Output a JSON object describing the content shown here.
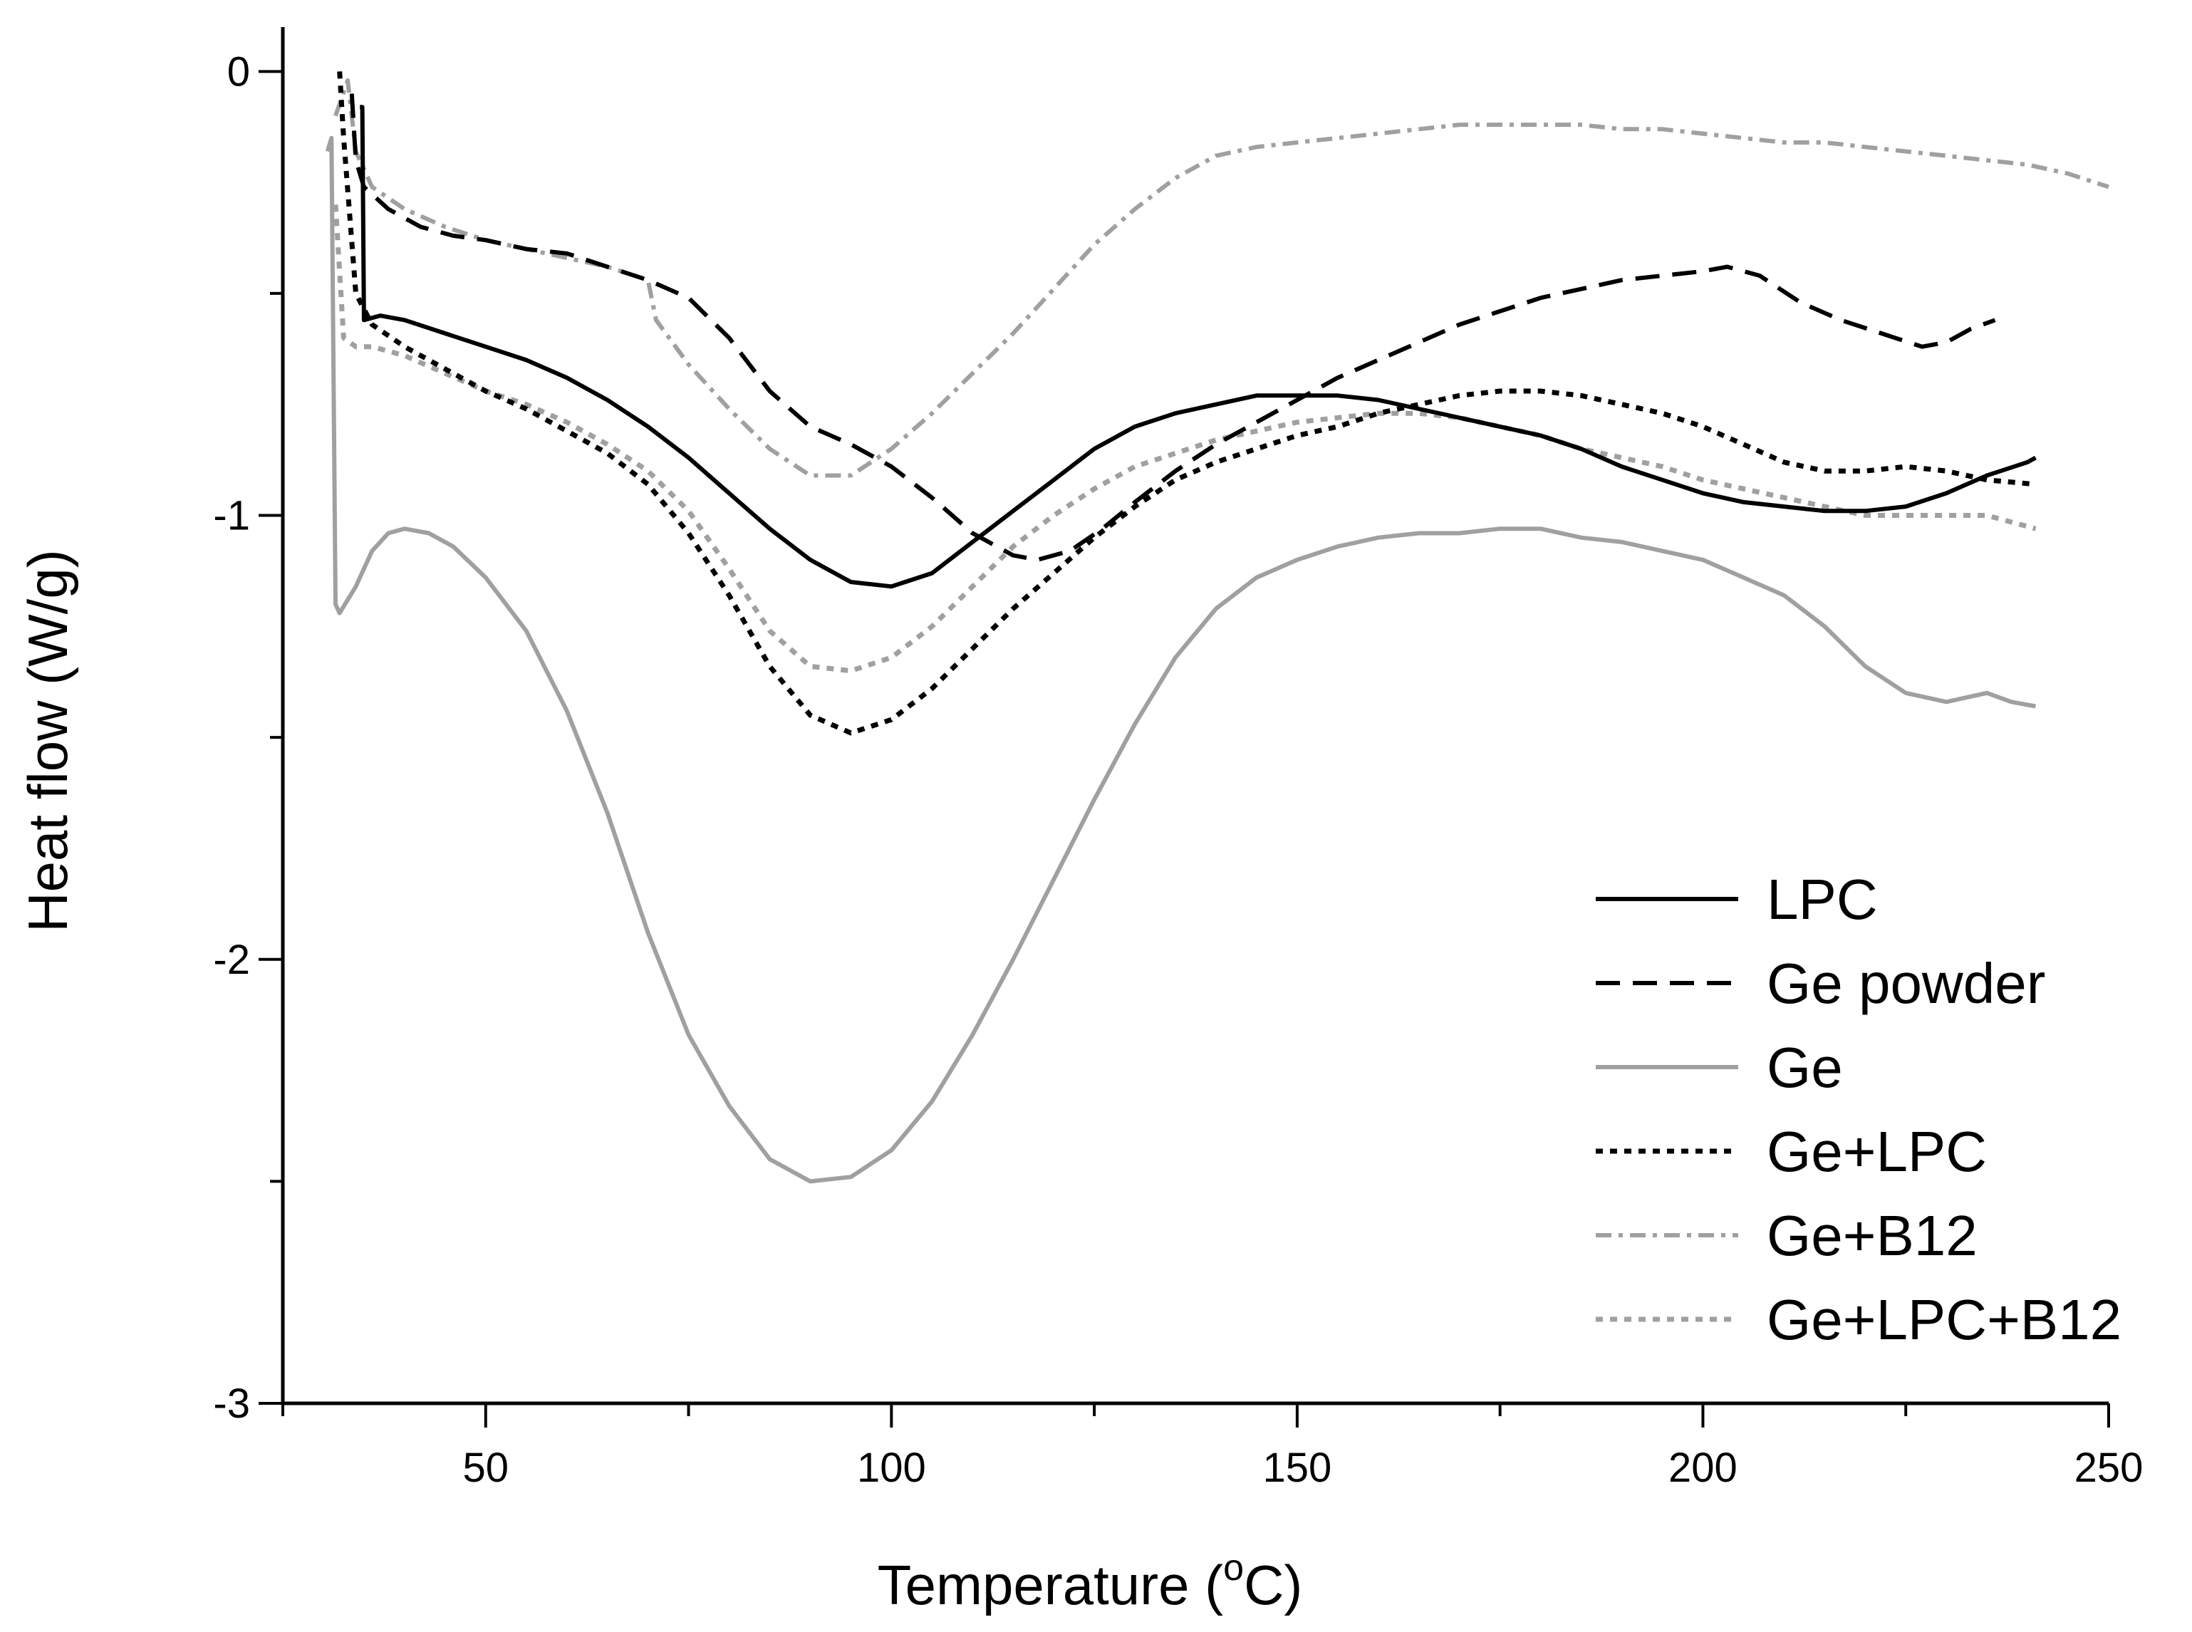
{
  "chart_data": {
    "type": "line",
    "title": "",
    "xlabel": "Temperature (",
    "xlabel_superscript": "o",
    "xlabel_unit": "C)",
    "ylabel": "Heat flow (W/g)",
    "xlim": [
      25,
      250
    ],
    "ylim": [
      -3,
      0.1
    ],
    "x_ticks": [
      50,
      100,
      150,
      200,
      250
    ],
    "x_tick_labels": [
      "50",
      "100",
      "150",
      "200",
      "250"
    ],
    "y_ticks": [
      0,
      -1,
      -2,
      -3
    ],
    "y_tick_labels": [
      "0",
      "-1",
      "-2",
      "-3"
    ],
    "legend_position": "bottom-right",
    "series": [
      {
        "name": "LPC",
        "style": "solid",
        "color": "#000000",
        "points": [
          [
            34.5,
            -0.08
          ],
          [
            34.8,
            -0.08
          ],
          [
            35.0,
            -0.56
          ],
          [
            37,
            -0.55
          ],
          [
            40,
            -0.56
          ],
          [
            45,
            -0.59
          ],
          [
            50,
            -0.62
          ],
          [
            55,
            -0.65
          ],
          [
            60,
            -0.69
          ],
          [
            65,
            -0.74
          ],
          [
            70,
            -0.8
          ],
          [
            75,
            -0.87
          ],
          [
            80,
            -0.95
          ],
          [
            85,
            -1.03
          ],
          [
            90,
            -1.1
          ],
          [
            95,
            -1.15
          ],
          [
            100,
            -1.16
          ],
          [
            105,
            -1.13
          ],
          [
            110,
            -1.06
          ],
          [
            115,
            -0.99
          ],
          [
            120,
            -0.92
          ],
          [
            125,
            -0.85
          ],
          [
            130,
            -0.8
          ],
          [
            135,
            -0.77
          ],
          [
            140,
            -0.75
          ],
          [
            145,
            -0.73
          ],
          [
            150,
            -0.73
          ],
          [
            155,
            -0.73
          ],
          [
            160,
            -0.74
          ],
          [
            165,
            -0.76
          ],
          [
            170,
            -0.78
          ],
          [
            175,
            -0.8
          ],
          [
            180,
            -0.82
          ],
          [
            185,
            -0.85
          ],
          [
            190,
            -0.89
          ],
          [
            195,
            -0.92
          ],
          [
            200,
            -0.95
          ],
          [
            205,
            -0.97
          ],
          [
            210,
            -0.98
          ],
          [
            215,
            -0.99
          ],
          [
            220,
            -0.99
          ],
          [
            225,
            -0.98
          ],
          [
            230,
            -0.95
          ],
          [
            235,
            -0.91
          ],
          [
            240,
            -0.88
          ],
          [
            241,
            -0.87
          ]
        ]
      },
      {
        "name": "Ge powder",
        "style": "dash",
        "color": "#000000",
        "points": [
          [
            33.5,
            -0.05
          ],
          [
            34,
            -0.2
          ],
          [
            35,
            -0.26
          ],
          [
            38,
            -0.31
          ],
          [
            42,
            -0.35
          ],
          [
            46,
            -0.37
          ],
          [
            50,
            -0.38
          ],
          [
            55,
            -0.4
          ],
          [
            60,
            -0.41
          ],
          [
            65,
            -0.44
          ],
          [
            70,
            -0.47
          ],
          [
            75,
            -0.51
          ],
          [
            80,
            -0.6
          ],
          [
            85,
            -0.72
          ],
          [
            90,
            -0.8
          ],
          [
            95,
            -0.84
          ],
          [
            100,
            -0.89
          ],
          [
            105,
            -0.96
          ],
          [
            110,
            -1.04
          ],
          [
            115,
            -1.09
          ],
          [
            118,
            -1.1
          ],
          [
            122,
            -1.08
          ],
          [
            126,
            -1.03
          ],
          [
            130,
            -0.97
          ],
          [
            135,
            -0.9
          ],
          [
            140,
            -0.84
          ],
          [
            145,
            -0.79
          ],
          [
            150,
            -0.74
          ],
          [
            155,
            -0.69
          ],
          [
            160,
            -0.65
          ],
          [
            165,
            -0.61
          ],
          [
            170,
            -0.57
          ],
          [
            175,
            -0.54
          ],
          [
            180,
            -0.51
          ],
          [
            185,
            -0.49
          ],
          [
            190,
            -0.47
          ],
          [
            195,
            -0.46
          ],
          [
            200,
            -0.45
          ],
          [
            203,
            -0.44
          ],
          [
            207,
            -0.46
          ],
          [
            212,
            -0.52
          ],
          [
            217,
            -0.56
          ],
          [
            222,
            -0.59
          ],
          [
            227,
            -0.62
          ],
          [
            230,
            -0.61
          ],
          [
            233,
            -0.58
          ],
          [
            236,
            -0.56
          ]
        ]
      },
      {
        "name": "Ge",
        "style": "solid",
        "color": "#a0a0a0",
        "points": [
          [
            30.5,
            -0.18
          ],
          [
            31,
            -0.15
          ],
          [
            31.5,
            -1.2
          ],
          [
            32,
            -1.22
          ],
          [
            34,
            -1.16
          ],
          [
            36,
            -1.08
          ],
          [
            38,
            -1.04
          ],
          [
            40,
            -1.03
          ],
          [
            43,
            -1.04
          ],
          [
            46,
            -1.07
          ],
          [
            50,
            -1.14
          ],
          [
            55,
            -1.26
          ],
          [
            60,
            -1.44
          ],
          [
            65,
            -1.67
          ],
          [
            70,
            -1.94
          ],
          [
            75,
            -2.17
          ],
          [
            80,
            -2.33
          ],
          [
            85,
            -2.45
          ],
          [
            90,
            -2.5
          ],
          [
            95,
            -2.49
          ],
          [
            100,
            -2.43
          ],
          [
            105,
            -2.32
          ],
          [
            110,
            -2.17
          ],
          [
            115,
            -2.0
          ],
          [
            120,
            -1.82
          ],
          [
            125,
            -1.64
          ],
          [
            130,
            -1.47
          ],
          [
            135,
            -1.32
          ],
          [
            140,
            -1.21
          ],
          [
            145,
            -1.14
          ],
          [
            150,
            -1.1
          ],
          [
            155,
            -1.07
          ],
          [
            160,
            -1.05
          ],
          [
            165,
            -1.04
          ],
          [
            170,
            -1.04
          ],
          [
            175,
            -1.03
          ],
          [
            180,
            -1.03
          ],
          [
            185,
            -1.05
          ],
          [
            190,
            -1.06
          ],
          [
            195,
            -1.08
          ],
          [
            200,
            -1.1
          ],
          [
            205,
            -1.14
          ],
          [
            210,
            -1.18
          ],
          [
            215,
            -1.25
          ],
          [
            220,
            -1.34
          ],
          [
            225,
            -1.4
          ],
          [
            230,
            -1.42
          ],
          [
            235,
            -1.4
          ],
          [
            238,
            -1.42
          ],
          [
            241,
            -1.43
          ]
        ]
      },
      {
        "name": "Ge+LPC",
        "style": "dot",
        "color": "#000000",
        "points": [
          [
            32,
            0.0
          ],
          [
            32.5,
            -0.15
          ],
          [
            34,
            -0.5
          ],
          [
            36,
            -0.57
          ],
          [
            40,
            -0.62
          ],
          [
            45,
            -0.67
          ],
          [
            50,
            -0.72
          ],
          [
            55,
            -0.76
          ],
          [
            60,
            -0.81
          ],
          [
            65,
            -0.86
          ],
          [
            70,
            -0.93
          ],
          [
            75,
            -1.04
          ],
          [
            80,
            -1.18
          ],
          [
            85,
            -1.34
          ],
          [
            90,
            -1.45
          ],
          [
            95,
            -1.49
          ],
          [
            100,
            -1.46
          ],
          [
            105,
            -1.39
          ],
          [
            110,
            -1.3
          ],
          [
            115,
            -1.21
          ],
          [
            120,
            -1.13
          ],
          [
            125,
            -1.05
          ],
          [
            130,
            -0.98
          ],
          [
            135,
            -0.92
          ],
          [
            140,
            -0.88
          ],
          [
            145,
            -0.85
          ],
          [
            150,
            -0.82
          ],
          [
            155,
            -0.8
          ],
          [
            160,
            -0.77
          ],
          [
            165,
            -0.75
          ],
          [
            170,
            -0.73
          ],
          [
            175,
            -0.72
          ],
          [
            180,
            -0.72
          ],
          [
            185,
            -0.73
          ],
          [
            190,
            -0.75
          ],
          [
            195,
            -0.77
          ],
          [
            200,
            -0.8
          ],
          [
            205,
            -0.84
          ],
          [
            210,
            -0.88
          ],
          [
            215,
            -0.9
          ],
          [
            220,
            -0.9
          ],
          [
            225,
            -0.89
          ],
          [
            230,
            -0.9
          ],
          [
            235,
            -0.92
          ],
          [
            241,
            -0.93
          ]
        ]
      },
      {
        "name": "Ge+B12",
        "style": "dashdot",
        "color": "#a0a0a0",
        "points": [
          [
            31.5,
            -0.1
          ],
          [
            33,
            -0.02
          ],
          [
            34,
            -0.18
          ],
          [
            36,
            -0.26
          ],
          [
            40,
            -0.31
          ],
          [
            45,
            -0.35
          ],
          [
            50,
            -0.38
          ],
          [
            55,
            -0.4
          ],
          [
            60,
            -0.42
          ],
          [
            65,
            -0.44
          ],
          [
            70,
            -0.47
          ],
          [
            71,
            -0.56
          ],
          [
            75,
            -0.66
          ],
          [
            80,
            -0.76
          ],
          [
            85,
            -0.85
          ],
          [
            90,
            -0.91
          ],
          [
            95,
            -0.91
          ],
          [
            100,
            -0.85
          ],
          [
            105,
            -0.77
          ],
          [
            110,
            -0.68
          ],
          [
            115,
            -0.59
          ],
          [
            120,
            -0.49
          ],
          [
            125,
            -0.39
          ],
          [
            130,
            -0.31
          ],
          [
            135,
            -0.24
          ],
          [
            140,
            -0.19
          ],
          [
            145,
            -0.17
          ],
          [
            150,
            -0.16
          ],
          [
            155,
            -0.15
          ],
          [
            160,
            -0.14
          ],
          [
            165,
            -0.13
          ],
          [
            170,
            -0.12
          ],
          [
            175,
            -0.12
          ],
          [
            180,
            -0.12
          ],
          [
            185,
            -0.12
          ],
          [
            190,
            -0.13
          ],
          [
            195,
            -0.13
          ],
          [
            200,
            -0.14
          ],
          [
            205,
            -0.15
          ],
          [
            210,
            -0.16
          ],
          [
            215,
            -0.16
          ],
          [
            220,
            -0.17
          ],
          [
            225,
            -0.18
          ],
          [
            230,
            -0.19
          ],
          [
            235,
            -0.2
          ],
          [
            240,
            -0.21
          ],
          [
            245,
            -0.23
          ],
          [
            250,
            -0.26
          ]
        ]
      },
      {
        "name": "Ge+LPC+B12",
        "style": "dot",
        "color": "#a0a0a0",
        "points": [
          [
            31.5,
            -0.3
          ],
          [
            32.5,
            -0.6
          ],
          [
            34,
            -0.62
          ],
          [
            36,
            -0.62
          ],
          [
            40,
            -0.64
          ],
          [
            45,
            -0.68
          ],
          [
            50,
            -0.72
          ],
          [
            55,
            -0.75
          ],
          [
            60,
            -0.79
          ],
          [
            65,
            -0.84
          ],
          [
            70,
            -0.9
          ],
          [
            75,
            -0.99
          ],
          [
            80,
            -1.12
          ],
          [
            85,
            -1.26
          ],
          [
            90,
            -1.34
          ],
          [
            95,
            -1.35
          ],
          [
            100,
            -1.32
          ],
          [
            105,
            -1.25
          ],
          [
            110,
            -1.16
          ],
          [
            115,
            -1.07
          ],
          [
            120,
            -1.0
          ],
          [
            125,
            -0.94
          ],
          [
            130,
            -0.89
          ],
          [
            135,
            -0.86
          ],
          [
            140,
            -0.83
          ],
          [
            145,
            -0.81
          ],
          [
            150,
            -0.79
          ],
          [
            155,
            -0.78
          ],
          [
            160,
            -0.77
          ],
          [
            165,
            -0.77
          ],
          [
            170,
            -0.78
          ],
          [
            175,
            -0.8
          ],
          [
            180,
            -0.82
          ],
          [
            185,
            -0.85
          ],
          [
            190,
            -0.87
          ],
          [
            195,
            -0.89
          ],
          [
            200,
            -0.92
          ],
          [
            205,
            -0.94
          ],
          [
            210,
            -0.96
          ],
          [
            215,
            -0.98
          ],
          [
            220,
            -1.0
          ],
          [
            225,
            -1.0
          ],
          [
            230,
            -1.0
          ],
          [
            235,
            -1.0
          ],
          [
            241,
            -1.03
          ]
        ]
      }
    ]
  }
}
